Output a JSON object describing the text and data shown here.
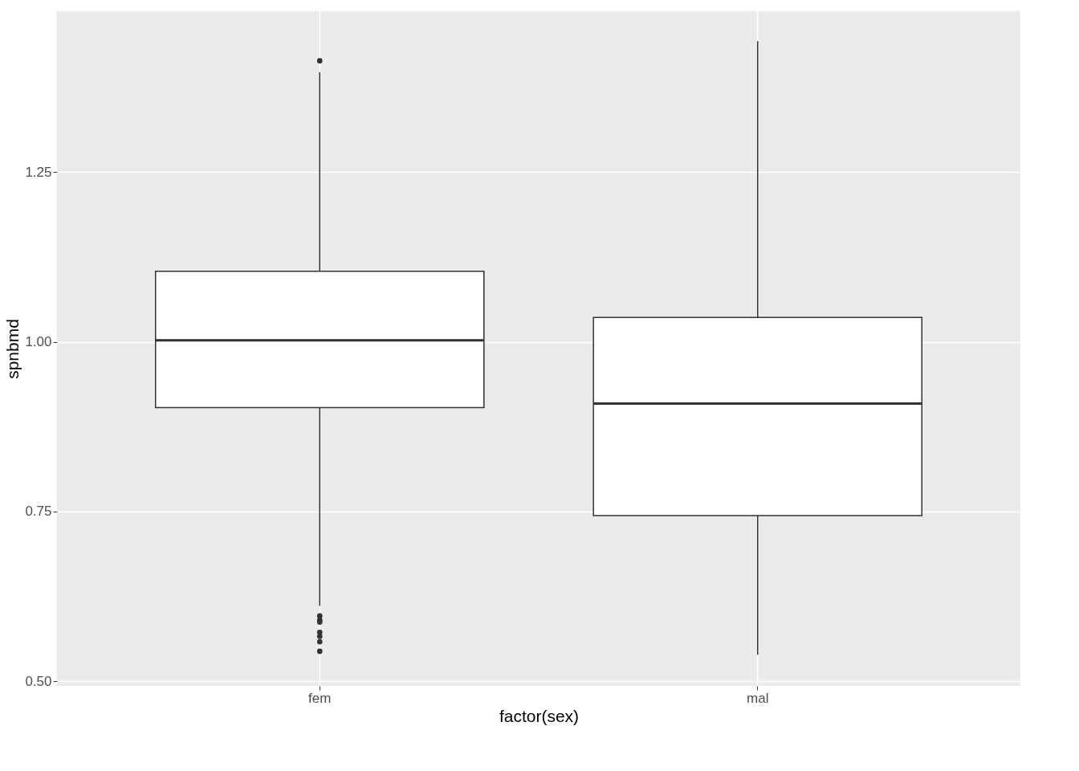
{
  "chart_data": {
    "type": "box",
    "xlabel": "factor(sex)",
    "ylabel": "spnbmd",
    "categories": [
      "fem",
      "mal"
    ],
    "boxes": [
      {
        "low": 0.611,
        "q1": 0.903,
        "median": 1.002,
        "q3": 1.104,
        "high": 1.397,
        "outliers": [
          1.414,
          0.596,
          0.59,
          0.587,
          0.572,
          0.566,
          0.558,
          0.544
        ]
      },
      {
        "low": 0.539,
        "q1": 0.744,
        "median": 0.909,
        "q3": 1.036,
        "high": 1.443
      }
    ],
    "color": "#ffffff",
    "ylim": [
      0.493,
      1.487
    ],
    "yticks": [
      {
        "value": 0.5,
        "label": "0.50"
      },
      0.75,
      {
        "value": 1.0,
        "label": "1.00"
      },
      1.25
    ],
    "grid": true
  }
}
